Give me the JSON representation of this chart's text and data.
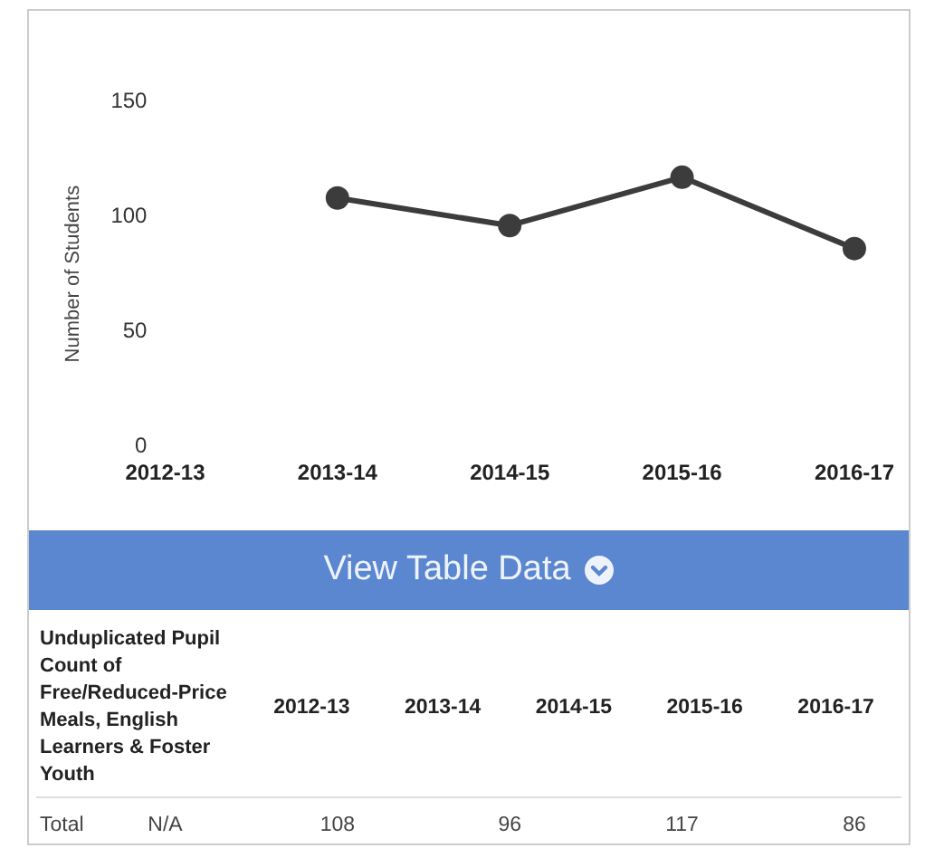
{
  "chart_data": {
    "type": "line",
    "categories": [
      "2012-13",
      "2013-14",
      "2014-15",
      "2015-16",
      "2016-17"
    ],
    "series": [
      {
        "color": "#3c3c3c",
        "values": [
          null,
          108,
          96,
          117,
          86
        ],
        "value_labels": [
          "N/A",
          "108",
          "96",
          "117",
          "86"
        ]
      }
    ],
    "ylabel": "Number of Students",
    "ylim": [
      0,
      150
    ],
    "yticks": [
      0,
      50,
      100,
      150
    ],
    "grid": false,
    "legend": false,
    "marker": "circle",
    "line_style": "solid",
    "data_labels": false,
    "annotations": [
      "View Table Data",
      "Unduplicated Pupil Count of Free/Reduced-Price Meals, English Learners & Foster Youth",
      "Total"
    ]
  }
}
